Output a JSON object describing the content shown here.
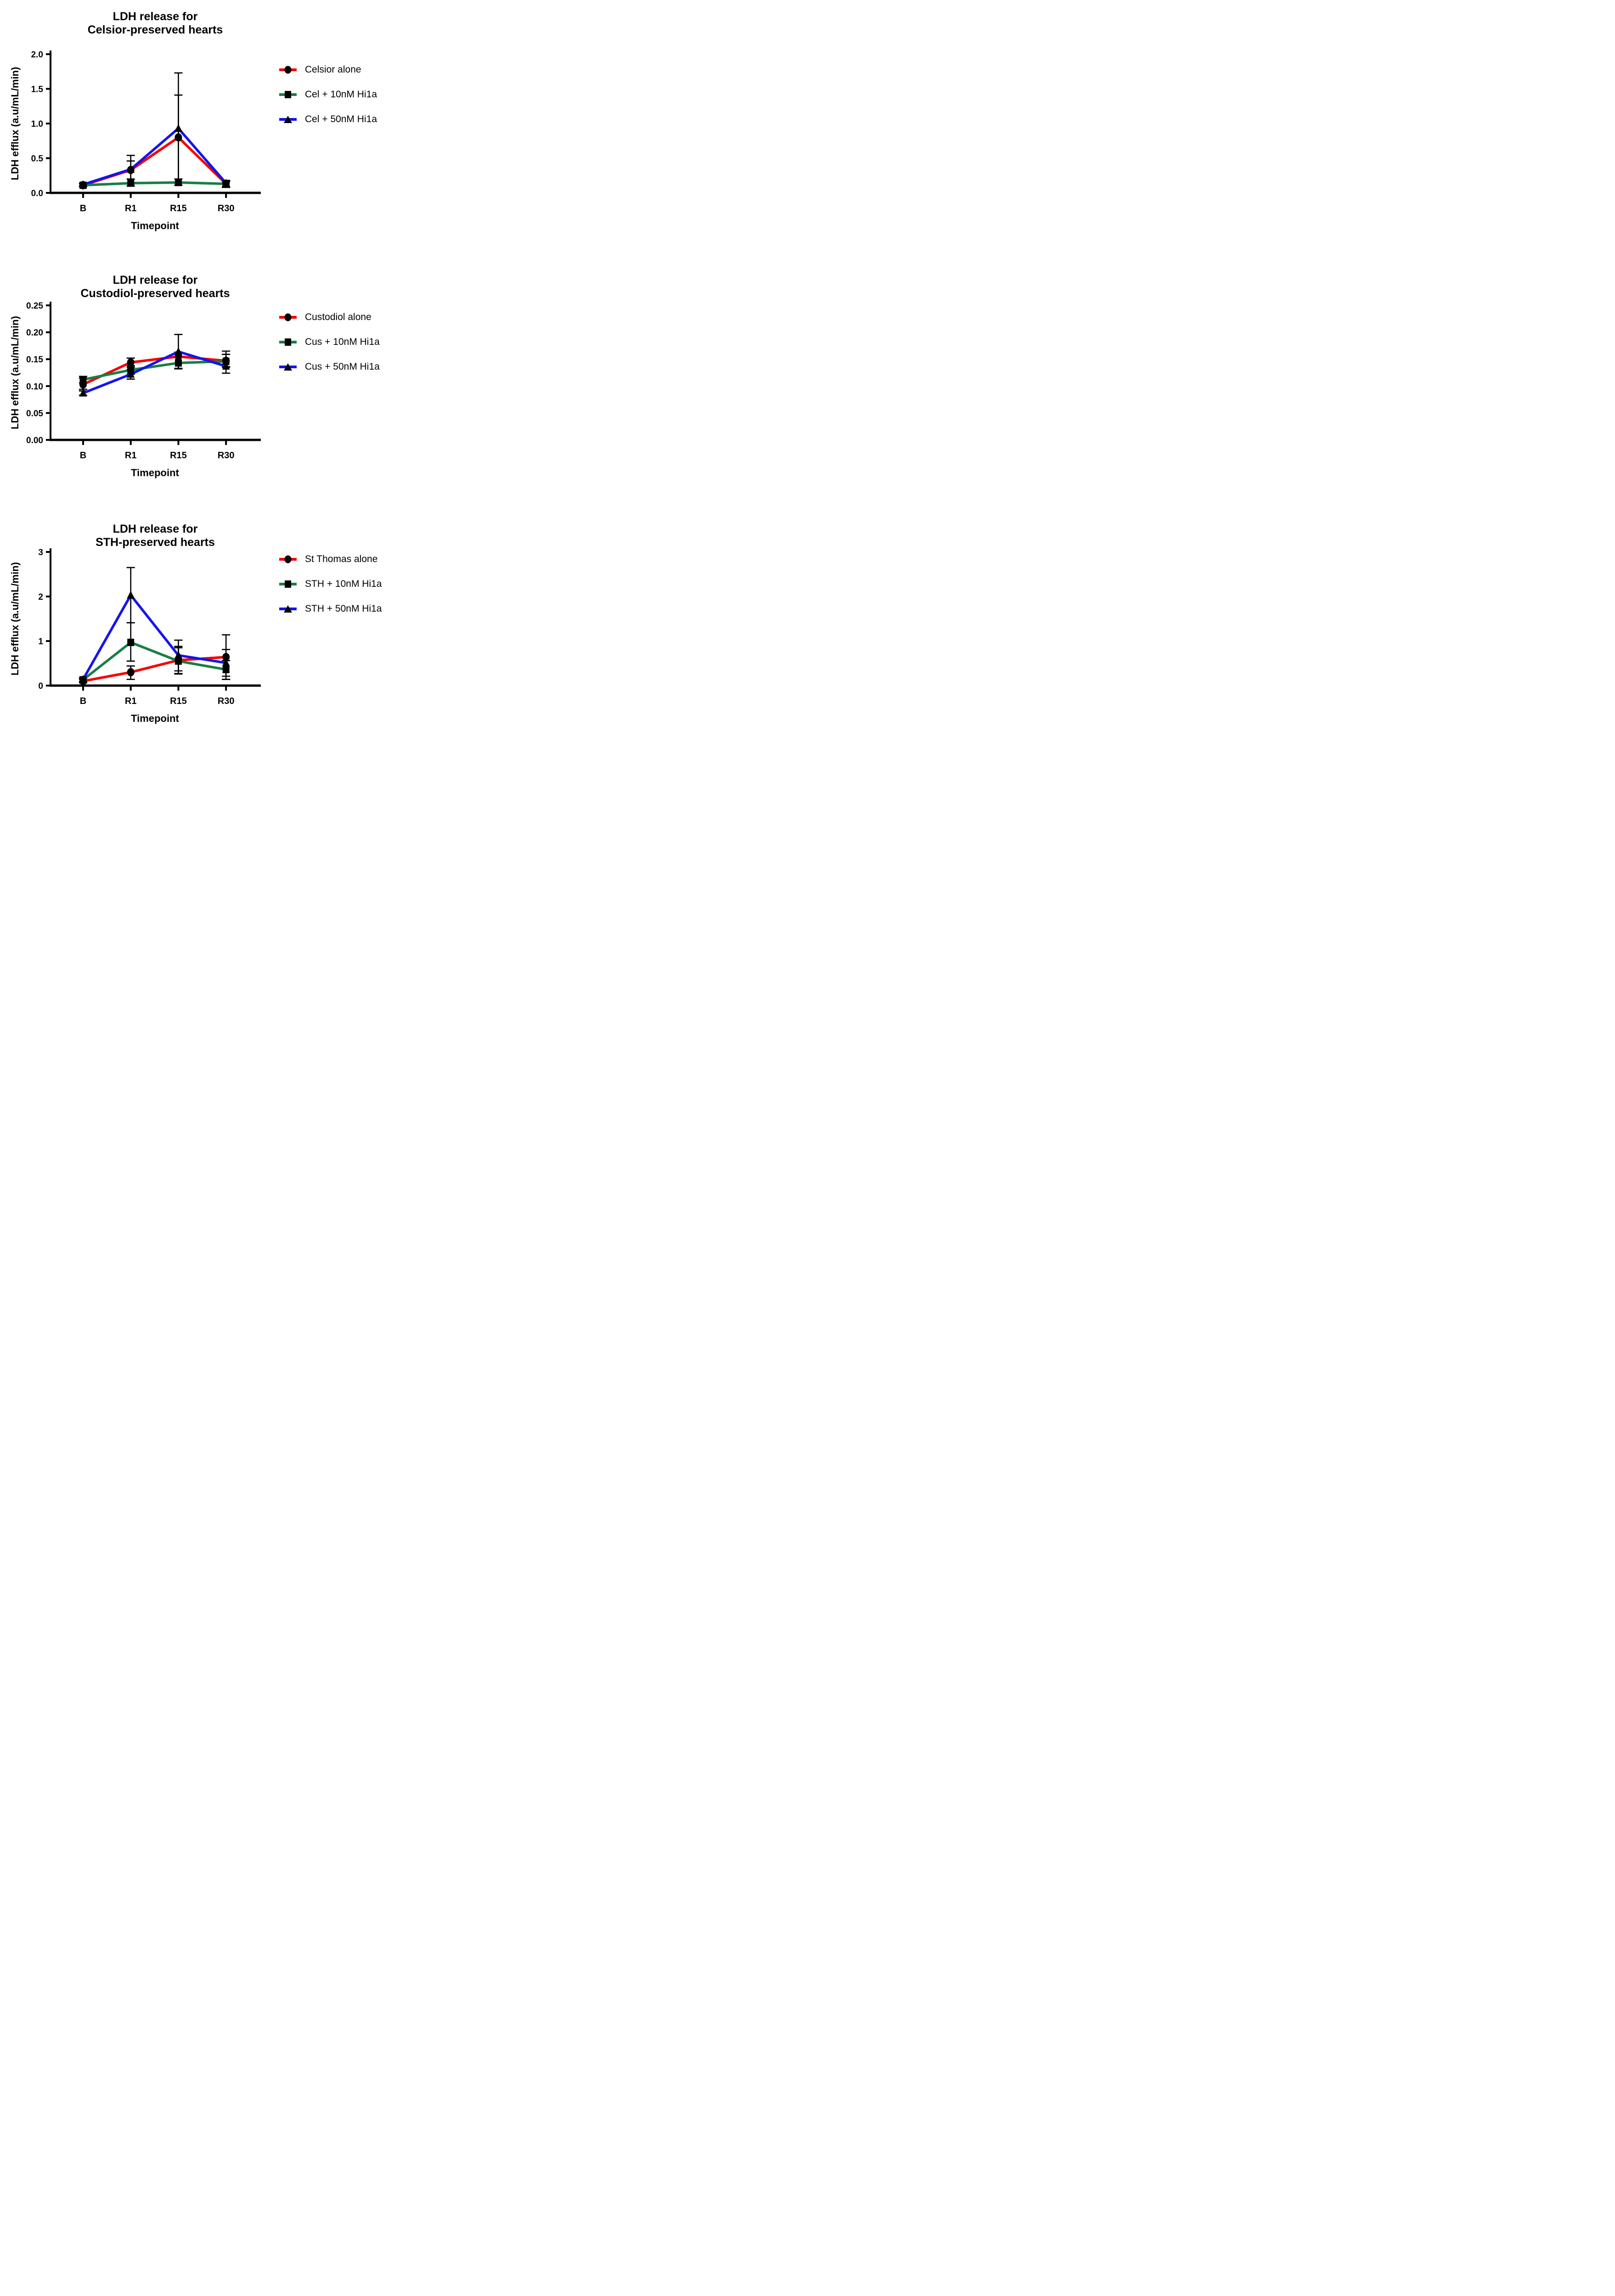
{
  "colors": {
    "red": "#f40000",
    "green": "#1a7e45",
    "blue": "#1414f0",
    "marker": "#000000",
    "axis": "#000000"
  },
  "chart_data": [
    {
      "type": "line",
      "title_line1": "LDH release for",
      "title_line2": "Celsior-preserved hearts",
      "xlabel": "Timepoint",
      "ylabel": "LDH efflux (a.u/mL/min)",
      "categories": [
        "B",
        "R1",
        "R15",
        "R30"
      ],
      "ylim": [
        0.0,
        2.0
      ],
      "yticks": [
        0.0,
        0.5,
        1.0,
        1.5,
        2.0
      ],
      "ytick_labels": [
        "0.0",
        "0.5",
        "1.0",
        "1.5",
        "2.0"
      ],
      "grid": false,
      "legend_position": "right",
      "series": [
        {
          "name": "Celsior alone",
          "color_key": "red",
          "marker": "circle",
          "values": [
            0.11,
            0.33,
            0.8,
            0.13
          ],
          "err_up": [
            0.02,
            0.13,
            0.61,
            0.04
          ],
          "err_down": [
            0.02,
            0.2,
            0.66,
            0.05
          ]
        },
        {
          "name": "Cel + 10nM Hi1a",
          "color_key": "green",
          "marker": "square",
          "values": [
            0.11,
            0.14,
            0.15,
            0.13
          ],
          "err_up": [
            0.02,
            0.06,
            0.05,
            0.03
          ],
          "err_down": [
            0.02,
            0.04,
            0.04,
            0.05
          ]
        },
        {
          "name": "Cel + 50nM Hi1a",
          "color_key": "blue",
          "marker": "triangle",
          "values": [
            0.12,
            0.34,
            0.93,
            0.14
          ],
          "err_up": [
            0.02,
            0.2,
            0.8,
            0.04
          ],
          "err_down": [
            0.02,
            0.21,
            0.78,
            0.05
          ]
        }
      ]
    },
    {
      "type": "line",
      "title_line1": "LDH release for",
      "title_line2": "Custodiol-preserved hearts",
      "xlabel": "Timepoint",
      "ylabel": "LDH efflux (a.u/mL/min)",
      "categories": [
        "B",
        "R1",
        "R15",
        "R30"
      ],
      "ylim": [
        0.0,
        0.25
      ],
      "yticks": [
        0.0,
        0.05,
        0.1,
        0.15,
        0.2,
        0.25
      ],
      "ytick_labels": [
        "0.00",
        "0.05",
        "0.10",
        "0.15",
        "0.20",
        "0.25"
      ],
      "grid": false,
      "legend_position": "right",
      "series": [
        {
          "name": "Custodiol alone",
          "color_key": "red",
          "marker": "circle",
          "values": [
            0.103,
            0.144,
            0.155,
            0.147
          ],
          "err_up": [
            0.012,
            0.008,
            0.008,
            0.012
          ],
          "err_down": [
            0.009,
            0.009,
            0.022,
            0.012
          ]
        },
        {
          "name": "Cus + 10nM Hi1a",
          "color_key": "green",
          "marker": "square",
          "values": [
            0.112,
            0.13,
            0.143,
            0.146
          ],
          "err_up": [
            0.006,
            0.008,
            0.012,
            0.019
          ],
          "err_down": [
            0.006,
            0.008,
            0.011,
            0.01
          ]
        },
        {
          "name": "Cus + 50nM Hi1a",
          "color_key": "blue",
          "marker": "triangle",
          "values": [
            0.087,
            0.122,
            0.164,
            0.137
          ],
          "err_up": [
            0.004,
            0.009,
            0.032,
            0.022
          ],
          "err_down": [
            0.004,
            0.009,
            0.031,
            0.013
          ]
        }
      ]
    },
    {
      "type": "line",
      "title_line1": "LDH release for",
      "title_line2": "STH-preserved hearts",
      "xlabel": "Timepoint",
      "ylabel": "LDH efflux (a.u/mL/min)",
      "categories": [
        "B",
        "R1",
        "R15",
        "R30"
      ],
      "ylim": [
        0,
        3
      ],
      "yticks": [
        0,
        1,
        2,
        3
      ],
      "ytick_labels": [
        "0",
        "1",
        "2",
        "3"
      ],
      "grid": false,
      "legend_position": "right",
      "series": [
        {
          "name": "St Thomas alone",
          "color_key": "red",
          "marker": "circle",
          "values": [
            0.1,
            0.3,
            0.57,
            0.64
          ],
          "err_up": [
            0.04,
            0.14,
            0.31,
            0.5
          ],
          "err_down": [
            0.04,
            0.16,
            0.31,
            0.5
          ]
        },
        {
          "name": "STH + 10nM Hi1a",
          "color_key": "green",
          "marker": "square",
          "values": [
            0.13,
            0.97,
            0.55,
            0.36
          ],
          "err_up": [
            0.04,
            0.44,
            0.3,
            0.2
          ],
          "err_down": [
            0.05,
            0.42,
            0.28,
            0.22
          ]
        },
        {
          "name": "STH + 50nM Hi1a",
          "color_key": "blue",
          "marker": "triangle",
          "values": [
            0.14,
            2.03,
            0.68,
            0.51
          ],
          "err_up": [
            0.04,
            0.62,
            0.34,
            0.3
          ],
          "err_down": [
            0.05,
            0.62,
            0.35,
            0.3
          ]
        }
      ]
    }
  ]
}
